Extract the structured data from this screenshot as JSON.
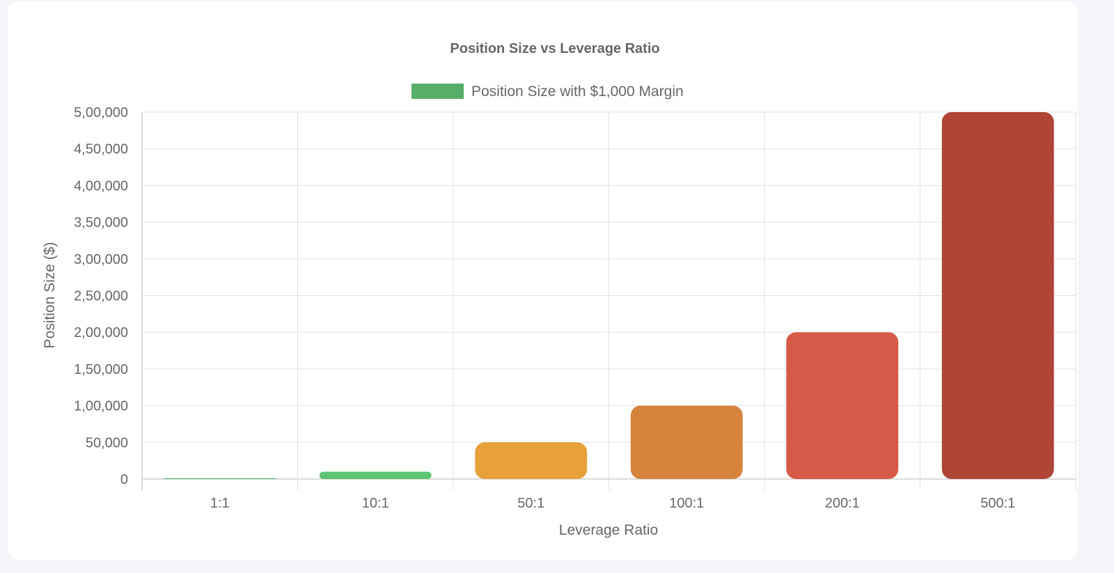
{
  "chart_data": {
    "type": "bar",
    "title": "Position Size vs Leverage Ratio",
    "legend": {
      "label": "Position Size with $1,000 Margin",
      "color": "#56ae69",
      "placement": "top-center"
    },
    "xlabel": "Leverage Ratio",
    "ylabel": "Position Size ($)",
    "categories": [
      "1:1",
      "10:1",
      "50:1",
      "100:1",
      "200:1",
      "500:1"
    ],
    "values": [
      1000,
      10000,
      50000,
      100000,
      200000,
      500000
    ],
    "colors": [
      "#4caf6a",
      "#5cc472",
      "#e8a03b",
      "#d6843d",
      "#d55a47",
      "#b04435"
    ],
    "ylim": [
      0,
      500000
    ],
    "yticks": [
      0,
      50000,
      100000,
      150000,
      200000,
      250000,
      300000,
      350000,
      400000,
      450000,
      500000
    ],
    "ytick_labels": [
      "0",
      "50,000",
      "1,00,000",
      "1,50,000",
      "2,00,000",
      "2,50,000",
      "3,00,000",
      "3,50,000",
      "4,00,000",
      "4,50,000",
      "5,00,000"
    ],
    "grid": true
  }
}
